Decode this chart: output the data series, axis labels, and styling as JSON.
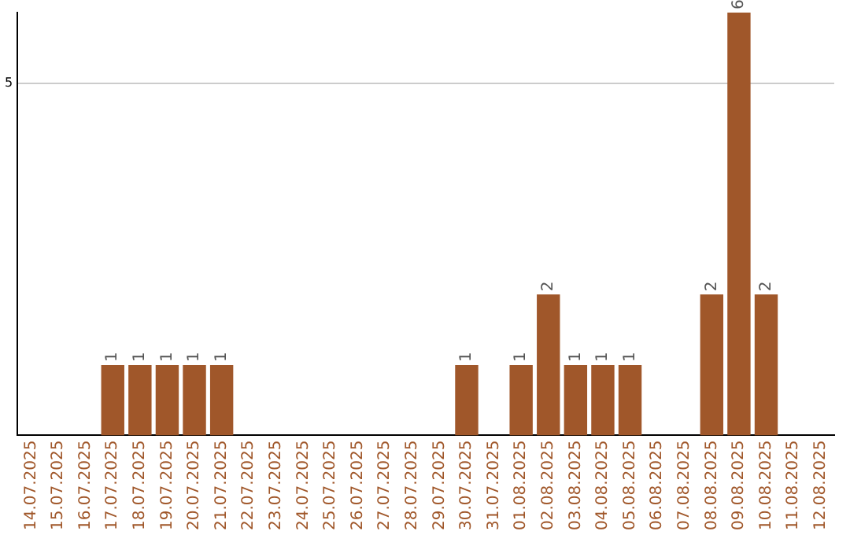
{
  "chart_data": {
    "type": "bar",
    "categories": [
      "14.07.2025",
      "15.07.2025",
      "16.07.2025",
      "17.07.2025",
      "18.07.2025",
      "19.07.2025",
      "20.07.2025",
      "21.07.2025",
      "22.07.2025",
      "23.07.2025",
      "24.07.2025",
      "25.07.2025",
      "26.07.2025",
      "27.07.2025",
      "28.07.2025",
      "29.07.2025",
      "30.07.2025",
      "31.07.2025",
      "01.08.2025",
      "02.08.2025",
      "03.08.2025",
      "04.08.2025",
      "05.08.2025",
      "06.08.2025",
      "07.08.2025",
      "08.08.2025",
      "09.08.2025",
      "10.08.2025",
      "11.08.2025",
      "12.08.2025"
    ],
    "values": [
      0,
      0,
      0,
      1,
      1,
      1,
      1,
      1,
      0,
      0,
      0,
      0,
      0,
      0,
      0,
      0,
      1,
      0,
      1,
      2,
      1,
      1,
      1,
      0,
      0,
      2,
      6,
      2,
      0,
      0
    ],
    "value_labels": [
      null,
      null,
      null,
      "1",
      "1",
      "1",
      "1",
      "1",
      null,
      null,
      null,
      null,
      null,
      null,
      null,
      null,
      "1",
      null,
      "1",
      "2",
      "1",
      "1",
      "1",
      null,
      null,
      "2",
      "6",
      "2",
      null,
      null
    ],
    "color": "#a0572a",
    "ylim": [
      0,
      6
    ],
    "yticks": [
      5
    ],
    "grid": "y",
    "legend": false
  }
}
